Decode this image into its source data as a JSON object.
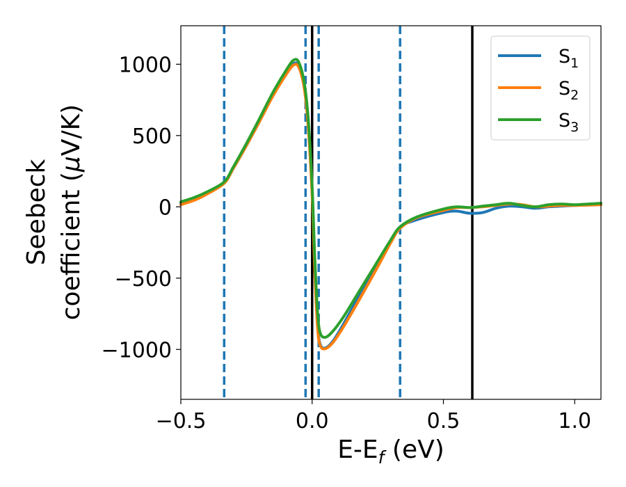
{
  "chart_data": {
    "type": "line",
    "xlabel_main": "E-E",
    "xlabel_sub": "f",
    "xlabel_unit": " (eV)",
    "ylabel_line1": "Seebeck",
    "ylabel_line2_text": "coefficient  (",
    "ylabel_mu": "μ",
    "ylabel_unit": "V/K)",
    "xlim": [
      -0.5,
      1.1
    ],
    "ylim": [
      -1350,
      1270
    ],
    "xticks": [
      -0.5,
      0.0,
      0.5,
      1.0
    ],
    "xtick_labels": [
      "−0.5",
      "0.0",
      "0.5",
      "1.0"
    ],
    "yticks": [
      1000,
      500,
      0,
      -500,
      -1000
    ],
    "ytick_labels": [
      "1000",
      "500",
      "0",
      "−500",
      "−1000"
    ],
    "grid": false,
    "legend_position": "top-right",
    "vlines_dashed": [
      -0.335,
      -0.025,
      0.025,
      0.335
    ],
    "vlines_solid": [
      0.0,
      0.61
    ],
    "vline_dashed_color": "#1f77b4",
    "vline_solid_color": "#000000",
    "series": [
      {
        "name": "S",
        "sub": "1",
        "color": "#1f77b4",
        "points": [
          [
            -0.5,
            25
          ],
          [
            -0.45,
            60
          ],
          [
            -0.4,
            100
          ],
          [
            -0.335,
            170
          ],
          [
            -0.3,
            270
          ],
          [
            -0.25,
            430
          ],
          [
            -0.2,
            600
          ],
          [
            -0.15,
            780
          ],
          [
            -0.1,
            930
          ],
          [
            -0.07,
            1005
          ],
          [
            -0.05,
            985
          ],
          [
            -0.03,
            850
          ],
          [
            -0.015,
            600
          ],
          [
            0.0,
            100
          ],
          [
            0.01,
            -400
          ],
          [
            0.02,
            -800
          ],
          [
            0.03,
            -960
          ],
          [
            0.05,
            -990
          ],
          [
            0.08,
            -940
          ],
          [
            0.12,
            -820
          ],
          [
            0.18,
            -620
          ],
          [
            0.25,
            -400
          ],
          [
            0.3,
            -240
          ],
          [
            0.335,
            -140
          ],
          [
            0.4,
            -90
          ],
          [
            0.5,
            -40
          ],
          [
            0.55,
            -30
          ],
          [
            0.6,
            -45
          ],
          [
            0.65,
            -40
          ],
          [
            0.7,
            -10
          ],
          [
            0.75,
            5
          ],
          [
            0.8,
            0
          ],
          [
            0.85,
            -10
          ],
          [
            0.9,
            0
          ],
          [
            0.95,
            5
          ],
          [
            1.0,
            10
          ],
          [
            1.05,
            15
          ],
          [
            1.1,
            20
          ]
        ]
      },
      {
        "name": "S",
        "sub": "2",
        "color": "#ff7f0e",
        "points": [
          [
            -0.5,
            15
          ],
          [
            -0.45,
            45
          ],
          [
            -0.4,
            90
          ],
          [
            -0.335,
            165
          ],
          [
            -0.3,
            270
          ],
          [
            -0.25,
            430
          ],
          [
            -0.2,
            600
          ],
          [
            -0.15,
            775
          ],
          [
            -0.1,
            925
          ],
          [
            -0.07,
            995
          ],
          [
            -0.05,
            975
          ],
          [
            -0.03,
            830
          ],
          [
            -0.015,
            560
          ],
          [
            0.0,
            80
          ],
          [
            0.01,
            -450
          ],
          [
            0.02,
            -830
          ],
          [
            0.03,
            -970
          ],
          [
            0.05,
            -995
          ],
          [
            0.08,
            -950
          ],
          [
            0.12,
            -840
          ],
          [
            0.18,
            -650
          ],
          [
            0.25,
            -420
          ],
          [
            0.3,
            -250
          ],
          [
            0.335,
            -150
          ],
          [
            0.4,
            -75
          ],
          [
            0.5,
            -25
          ],
          [
            0.55,
            -5
          ],
          [
            0.6,
            -5
          ],
          [
            0.65,
            0
          ],
          [
            0.7,
            10
          ],
          [
            0.75,
            20
          ],
          [
            0.8,
            15
          ],
          [
            0.85,
            0
          ],
          [
            0.9,
            5
          ],
          [
            0.95,
            10
          ],
          [
            1.0,
            10
          ],
          [
            1.05,
            12
          ],
          [
            1.1,
            15
          ]
        ]
      },
      {
        "name": "S",
        "sub": "3",
        "color": "#2ca02c",
        "points": [
          [
            -0.5,
            35
          ],
          [
            -0.45,
            65
          ],
          [
            -0.4,
            105
          ],
          [
            -0.335,
            175
          ],
          [
            -0.3,
            280
          ],
          [
            -0.25,
            445
          ],
          [
            -0.2,
            620
          ],
          [
            -0.15,
            800
          ],
          [
            -0.1,
            955
          ],
          [
            -0.07,
            1030
          ],
          [
            -0.05,
            1010
          ],
          [
            -0.03,
            870
          ],
          [
            -0.015,
            620
          ],
          [
            0.0,
            150
          ],
          [
            0.01,
            -350
          ],
          [
            0.02,
            -720
          ],
          [
            0.03,
            -880
          ],
          [
            0.05,
            -915
          ],
          [
            0.08,
            -870
          ],
          [
            0.12,
            -770
          ],
          [
            0.18,
            -590
          ],
          [
            0.25,
            -380
          ],
          [
            0.3,
            -230
          ],
          [
            0.335,
            -140
          ],
          [
            0.4,
            -70
          ],
          [
            0.5,
            -15
          ],
          [
            0.55,
            0
          ],
          [
            0.6,
            -5
          ],
          [
            0.65,
            5
          ],
          [
            0.7,
            15
          ],
          [
            0.75,
            25
          ],
          [
            0.8,
            10
          ],
          [
            0.85,
            0
          ],
          [
            0.9,
            15
          ],
          [
            0.95,
            20
          ],
          [
            1.0,
            15
          ],
          [
            1.05,
            20
          ],
          [
            1.1,
            25
          ]
        ]
      }
    ]
  }
}
